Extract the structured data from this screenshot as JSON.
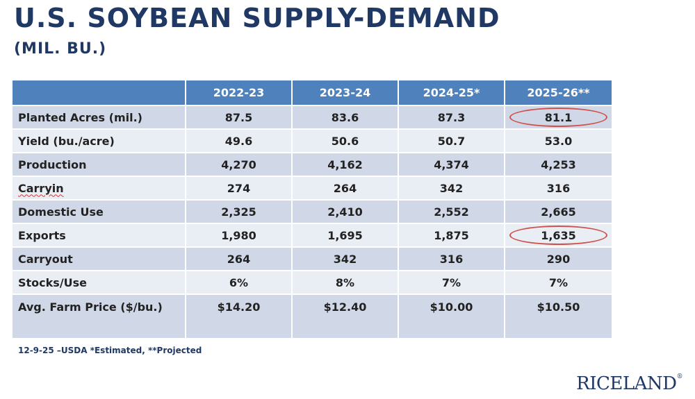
{
  "title": "U.S. SOYBEAN SUPPLY-DEMAND",
  "subtitle": "(MIL. BU.)",
  "table": {
    "headers": [
      "",
      "2022-23",
      "2023-24",
      "2024-25*",
      "2025-26**"
    ],
    "rows": [
      {
        "label": "Planted Acres (mil.)",
        "values": [
          "87.5",
          "83.6",
          "87.3",
          "81.1"
        ]
      },
      {
        "label": "Yield (bu./acre)",
        "values": [
          "49.6",
          "50.6",
          "50.7",
          "53.0"
        ]
      },
      {
        "label": "Production",
        "values": [
          "4,270",
          "4,162",
          "4,374",
          "4,253"
        ]
      },
      {
        "label": "Carryin",
        "values": [
          "274",
          "264",
          "342",
          "316"
        ]
      },
      {
        "label": "Domestic Use",
        "values": [
          "2,325",
          "2,410",
          "2,552",
          "2,665"
        ]
      },
      {
        "label": "Exports",
        "values": [
          "1,980",
          "1,695",
          "1,875",
          "1,635"
        ]
      },
      {
        "label": "Carryout",
        "values": [
          "264",
          "342",
          "316",
          "290"
        ]
      },
      {
        "label": "Stocks/Use",
        "values": [
          "6%",
          "8%",
          "7%",
          "7%"
        ]
      },
      {
        "label": "Avg. Farm Price ($/bu.)",
        "values": [
          "$14.20",
          "$12.40",
          "$10.00",
          "$10.50"
        ]
      }
    ]
  },
  "footnote": "12-9-25 –USDA *Estimated, **Projected",
  "logo": {
    "text": "RICELAND",
    "mark": "®"
  },
  "colors": {
    "header_bg": "#4f81bd",
    "title": "#1f3864",
    "row_dark": "#d0d8e8",
    "row_light": "#e9edf4",
    "highlight_circle": "#d0504a"
  }
}
